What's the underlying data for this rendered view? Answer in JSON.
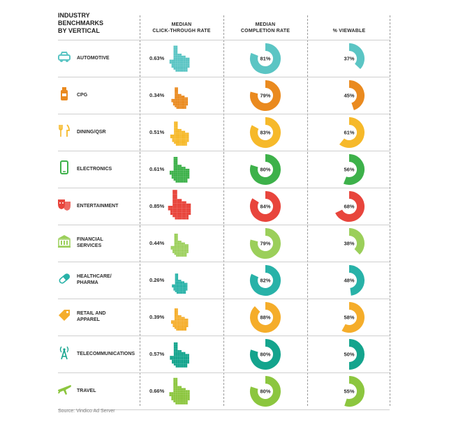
{
  "title": "INDUSTRY\nBENCHMARKS\nBY VERTICAL",
  "headers": {
    "ctr": "MEDIAN\nCLICK-THROUGH RATE",
    "completion": "MEDIAN\nCOMPLETION RATE",
    "viewable": "% VIEWABLE"
  },
  "source": "Source: Vindico Ad Server",
  "rows": [
    {
      "label": "AUTOMOTIVE",
      "icon": "car-icon",
      "color": "#5bc5c4",
      "ctr_text": "0.63%",
      "completion_text": "81%",
      "viewable_text": "37%"
    },
    {
      "label": "CPG",
      "icon": "bottle-icon",
      "color": "#ea8a1f",
      "ctr_text": "0.34%",
      "completion_text": "79%",
      "viewable_text": "45%"
    },
    {
      "label": "DINING/QSR",
      "icon": "fork-knife-icon",
      "color": "#f6b92a",
      "ctr_text": "0.51%",
      "completion_text": "83%",
      "viewable_text": "61%"
    },
    {
      "label": "ELECTRONICS",
      "icon": "phone-icon",
      "color": "#3db14a",
      "ctr_text": "0.61%",
      "completion_text": "80%",
      "viewable_text": "56%"
    },
    {
      "label": "ENTERTAINMENT",
      "icon": "theater-masks-icon",
      "color": "#e8453c",
      "ctr_text": "0.85%",
      "completion_text": "84%",
      "viewable_text": "68%"
    },
    {
      "label": "FINANCIAL\nSERVICES",
      "icon": "bank-icon",
      "color": "#9bcf5a",
      "ctr_text": "0.44%",
      "completion_text": "79%",
      "viewable_text": "38%"
    },
    {
      "label": "HEALTHCARE/\nPHARMA",
      "icon": "pill-icon",
      "color": "#28b2a8",
      "ctr_text": "0.26%",
      "completion_text": "82%",
      "viewable_text": "48%"
    },
    {
      "label": "RETAIL AND\nAPPAREL",
      "icon": "price-tag-icon",
      "color": "#f5ad2a",
      "ctr_text": "0.39%",
      "completion_text": "88%",
      "viewable_text": "58%"
    },
    {
      "label": "TELECOMMUNICATIONS",
      "icon": "antenna-tower-icon",
      "color": "#14a48d",
      "ctr_text": "0.57%",
      "completion_text": "80%",
      "viewable_text": "50%"
    },
    {
      "label": "TRAVEL",
      "icon": "airplane-icon",
      "color": "#8cc63f",
      "ctr_text": "0.66%",
      "completion_text": "80%",
      "viewable_text": "55%"
    }
  ],
  "chart_data": {
    "type": "table",
    "columns": [
      "MEDIAN CLICK-THROUGH RATE",
      "MEDIAN COMPLETION RATE",
      "% VIEWABLE"
    ],
    "categories": [
      "AUTOMOTIVE",
      "CPG",
      "DINING/QSR",
      "ELECTRONICS",
      "ENTERTAINMENT",
      "FINANCIAL SERVICES",
      "HEALTHCARE/PHARMA",
      "RETAIL AND APPAREL",
      "TELECOMMUNICATIONS",
      "TRAVEL"
    ],
    "series": [
      {
        "name": "MEDIAN CLICK-THROUGH RATE",
        "values": [
          0.63,
          0.34,
          0.51,
          0.61,
          0.85,
          0.44,
          0.26,
          0.39,
          0.57,
          0.66
        ]
      },
      {
        "name": "MEDIAN COMPLETION RATE",
        "values": [
          81,
          79,
          83,
          80,
          84,
          79,
          82,
          88,
          80,
          80
        ]
      },
      {
        "name": "% VIEWABLE",
        "values": [
          37,
          45,
          61,
          56,
          68,
          38,
          48,
          58,
          50,
          55
        ]
      }
    ]
  }
}
